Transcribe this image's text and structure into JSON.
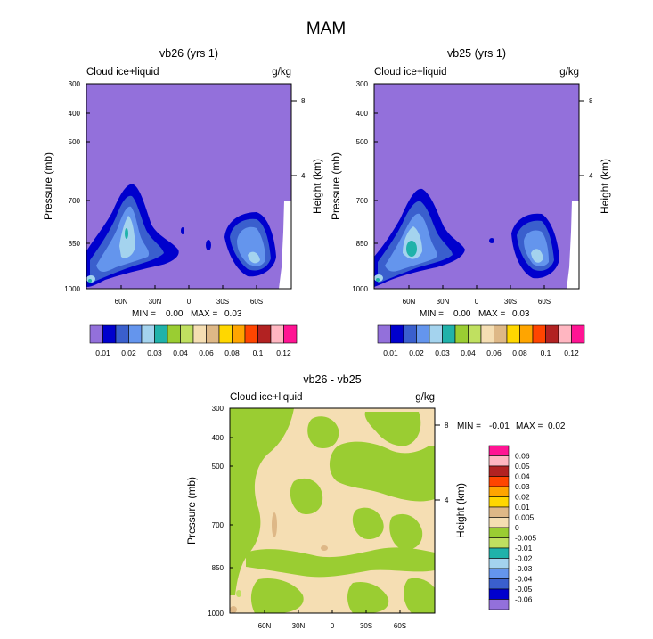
{
  "figure_title": "MAM",
  "colors": {
    "background_fill": "#9370DB",
    "palette": [
      "#9370DB",
      "#0000CD",
      "#3A5FCD",
      "#6495ED",
      "#A4D3EE",
      "#20B2AA",
      "#9ACD32",
      "#C0E060",
      "#F5DEB3",
      "#DEB887",
      "#FFD700",
      "#FFA500",
      "#FF4500",
      "#B22222",
      "#FFB6C1",
      "#FF1493"
    ]
  },
  "chart_data": [
    {
      "type": "contour",
      "id": "vb26",
      "title": "vb26 (yrs 1)",
      "left_label": "Cloud ice+liquid",
      "right_label": "g/kg",
      "ylabel": "Pressure (mb)",
      "ylabel_right": "Height (km)",
      "pressure_ticks": [
        "300",
        "400",
        "500",
        "700",
        "850",
        "1000"
      ],
      "height_ticks": [
        "8",
        "4"
      ],
      "lat_ticks": [
        "60N",
        "30N",
        "0",
        "30S",
        "60S"
      ],
      "min_label": "MIN =",
      "min_value": "0.00",
      "max_label": "MAX =",
      "max_value": "0.03",
      "colorbar_labels": [
        "0.01",
        "0.02",
        "0.03",
        "0.04",
        "0.06",
        "0.08",
        "0.1",
        "0.12"
      ]
    },
    {
      "type": "contour",
      "id": "vb25",
      "title": "vb25 (yrs 1)",
      "left_label": "Cloud ice+liquid",
      "right_label": "g/kg",
      "ylabel": "Pressure (mb)",
      "ylabel_right": "Height (km)",
      "pressure_ticks": [
        "300",
        "400",
        "500",
        "700",
        "850",
        "1000"
      ],
      "height_ticks": [
        "8",
        "4"
      ],
      "lat_ticks": [
        "60N",
        "30N",
        "0",
        "30S",
        "60S"
      ],
      "min_label": "MIN =",
      "min_value": "0.00",
      "max_label": "MAX =",
      "max_value": "0.03",
      "colorbar_labels": [
        "0.01",
        "0.02",
        "0.03",
        "0.04",
        "0.06",
        "0.08",
        "0.1",
        "0.12"
      ]
    },
    {
      "type": "contour",
      "id": "diff",
      "title": "vb26 - vb25",
      "left_label": "Cloud ice+liquid",
      "right_label": "g/kg",
      "ylabel": "Pressure (mb)",
      "ylabel_right": "Height (km)",
      "pressure_ticks": [
        "300",
        "400",
        "500",
        "700",
        "850",
        "1000"
      ],
      "height_ticks": [
        "8",
        "4"
      ],
      "lat_ticks": [
        "60N",
        "30N",
        "0",
        "30S",
        "60S"
      ],
      "min_label": "MIN =",
      "min_value": "-0.01",
      "max_label": "MAX =",
      "max_value": "0.02",
      "colorbar_labels": [
        "0.06",
        "0.05",
        "0.04",
        "0.03",
        "0.02",
        "0.01",
        "0.005",
        "0",
        "-0.005",
        "-0.01",
        "-0.02",
        "-0.03",
        "-0.04",
        "-0.05",
        "-0.06"
      ]
    }
  ]
}
